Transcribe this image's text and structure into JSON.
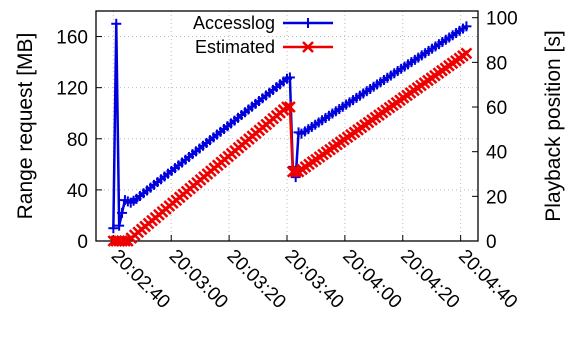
{
  "chart_data": {
    "type": "line",
    "title": "",
    "ylabel": "Range request [MB]",
    "y2label": "Playback position [s]",
    "xlabel": "",
    "ylim": [
      0,
      180
    ],
    "y2lim": [
      0,
      103
    ],
    "xlim": [
      "20:02:34",
      "20:04:46"
    ],
    "yticks": [
      "0",
      "40",
      "80",
      "120",
      "160"
    ],
    "y2ticks": [
      "0",
      "20",
      "40",
      "60",
      "80",
      "100"
    ],
    "xticks": [
      "20:02:40",
      "20:03:00",
      "20:03:20",
      "20:03:40",
      "20:04:00",
      "20:04:20",
      "20:04:40"
    ],
    "grid": true,
    "legend_position": "top",
    "series": [
      {
        "name": "Accesslog",
        "color": "#0000dd",
        "marker": "plus",
        "axis": "y",
        "x": [
          "20:02:40",
          "20:02:41",
          "20:02:42",
          "20:02:44",
          "20:02:46",
          "20:02:48",
          "20:03:40",
          "20:03:41",
          "20:03:42",
          "20:03:43",
          "20:03:44",
          "20:03:45",
          "20:04:42"
        ],
        "y": [
          10,
          170,
          12,
          32,
          30,
          33,
          127,
          128,
          58,
          50,
          85,
          84,
          168
        ]
      },
      {
        "name": "Estimated",
        "color": "#ee0000",
        "marker": "x",
        "axis": "y2",
        "x": [
          "20:02:40",
          "20:02:42",
          "20:02:45",
          "20:03:40",
          "20:03:41",
          "20:03:42",
          "20:03:44",
          "20:04:42"
        ],
        "y": [
          0,
          0,
          0,
          60,
          60,
          31,
          31,
          84
        ]
      }
    ]
  }
}
